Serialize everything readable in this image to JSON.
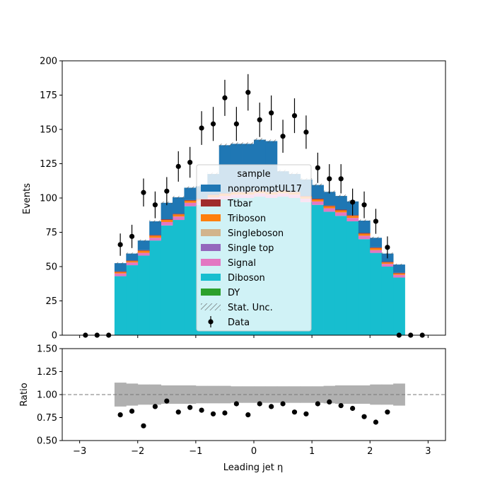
{
  "chart_data": [
    {
      "type": "bar",
      "subtype": "stacked-histogram-with-data-points",
      "xlabel": "Leading jet  η",
      "ylabel": "Events",
      "ylim": [
        0,
        200
      ],
      "yticks": [
        0,
        25,
        50,
        75,
        100,
        125,
        150,
        175,
        200
      ],
      "xlim": [
        -3.3,
        3.3
      ],
      "xticks": [
        -3,
        -2,
        -1,
        0,
        1,
        2,
        3
      ],
      "bin_edges": [
        -3.0,
        -2.8,
        -2.6,
        -2.4,
        -2.2,
        -2.0,
        -1.8,
        -1.6,
        -1.4,
        -1.2,
        -1.0,
        -0.8,
        -0.6,
        -0.4,
        -0.2,
        0.0,
        0.2,
        0.4,
        0.6,
        0.8,
        1.0,
        1.2,
        1.4,
        1.6,
        1.8,
        2.0,
        2.2,
        2.4,
        2.6,
        2.8,
        3.0
      ],
      "stack_order": [
        "DY",
        "Diboson",
        "Signal",
        "Single top",
        "Singleboson",
        "Triboson",
        "Ttbar",
        "nonpromptUL17"
      ],
      "series": [
        {
          "name": "nonpromptUL17",
          "color": "#1f77b4",
          "values": [
            0,
            0,
            0,
            6,
            5,
            7,
            10,
            12,
            12,
            9,
            9,
            15,
            35,
            35,
            35,
            37,
            37,
            14,
            13,
            12,
            10,
            10,
            10,
            10,
            9,
            7,
            6,
            6,
            0,
            0
          ]
        },
        {
          "name": "Ttbar",
          "color": "#a02c2c",
          "values": [
            0,
            0,
            0,
            0.5,
            0.5,
            0.5,
            0.5,
            0.5,
            0.5,
            0.5,
            0.5,
            0.5,
            0.5,
            0.5,
            0.5,
            0.5,
            0.5,
            0.5,
            0.5,
            0.5,
            0.5,
            0.5,
            0.5,
            0.5,
            0.5,
            0.5,
            0.5,
            0.5,
            0,
            0
          ]
        },
        {
          "name": "Triboson",
          "color": "#ff7f0e",
          "values": [
            0,
            0,
            0,
            1,
            1,
            1.5,
            1.5,
            1.5,
            1.5,
            1.5,
            1.5,
            1.5,
            1.5,
            1.5,
            1.5,
            1.5,
            1.5,
            1.5,
            1.5,
            1.5,
            1.5,
            1.5,
            1.5,
            1.5,
            1.5,
            1.5,
            1,
            1,
            0,
            0
          ]
        },
        {
          "name": "Singleboson",
          "color": "#d2b48c",
          "values": [
            0,
            0,
            0,
            0,
            0,
            0,
            0,
            0,
            0,
            0,
            0,
            0,
            0,
            0,
            0,
            0,
            0,
            0,
            0,
            0,
            0,
            0,
            0,
            0,
            0,
            0,
            0,
            0,
            0,
            0
          ]
        },
        {
          "name": "Single top",
          "color": "#9467bd",
          "values": [
            0,
            0,
            0,
            0,
            0,
            0,
            0,
            0,
            0,
            0,
            0,
            0,
            0,
            0,
            0,
            0,
            0,
            0,
            0,
            0,
            0,
            0,
            0,
            0,
            0,
            0,
            0,
            0,
            0,
            0
          ]
        },
        {
          "name": "Signal",
          "color": "#e377c2",
          "values": [
            0,
            0,
            0,
            2,
            2,
            2,
            2,
            2.5,
            2.5,
            2.5,
            2.5,
            2.5,
            2.5,
            2.5,
            2.5,
            2.5,
            2.5,
            2.5,
            2.5,
            2.5,
            2.5,
            2.5,
            2.5,
            2.5,
            2.5,
            2,
            2,
            2,
            0,
            0
          ]
        },
        {
          "name": "Diboson",
          "color": "#17becf",
          "values": [
            0,
            0,
            0,
            43,
            51,
            58,
            69,
            80,
            84,
            94,
            95,
            98,
            99,
            100,
            100,
            101,
            100,
            101,
            100,
            97,
            95,
            90,
            87,
            83,
            70,
            60,
            50,
            42,
            0,
            0
          ]
        },
        {
          "name": "DY",
          "color": "#2ca02c",
          "values": [
            0,
            0,
            0,
            0,
            0,
            0,
            0,
            0,
            0,
            0,
            0,
            0,
            0,
            0,
            0,
            0,
            0,
            0,
            0,
            0,
            0,
            0,
            0,
            0,
            0,
            0,
            0,
            0,
            0,
            0
          ]
        }
      ],
      "stat_unc_label": "Stat. Unc.",
      "data": {
        "name": "Data",
        "color": "#000000",
        "x": [
          -2.9,
          -2.7,
          -2.5,
          -2.3,
          -2.1,
          -1.9,
          -1.7,
          -1.5,
          -1.3,
          -1.1,
          -0.9,
          -0.7,
          -0.5,
          -0.3,
          -0.1,
          0.1,
          0.3,
          0.5,
          0.7,
          0.9,
          1.1,
          1.3,
          1.5,
          1.7,
          1.9,
          2.1,
          2.3,
          2.5,
          2.7,
          2.9
        ],
        "y": [
          0,
          0,
          0,
          66,
          72,
          104,
          95,
          105,
          123,
          126,
          151,
          154,
          173,
          154,
          177,
          157,
          162,
          145,
          160,
          148,
          122,
          114,
          114,
          97,
          95,
          83,
          64,
          0,
          0,
          0
        ]
      },
      "legend": {
        "title": "sample",
        "placement": "center"
      }
    },
    {
      "type": "scatter",
      "subtype": "ratio-panel",
      "xlabel": "Leading jet  η",
      "ylabel": "Ratio",
      "ylim": [
        0.5,
        1.5
      ],
      "yticks": [
        "0.50",
        "0.75",
        "1.00",
        "1.25",
        "1.50"
      ],
      "reference_line": 1.0,
      "unc_band": {
        "color": "#b0b0b0",
        "halfwidth": [
          0.13,
          0.12,
          0.11,
          0.11,
          0.1,
          0.1,
          0.1,
          0.095,
          0.095,
          0.095,
          0.09,
          0.09,
          0.09,
          0.09,
          0.09,
          0.09,
          0.09,
          0.09,
          0.095,
          0.1,
          0.1,
          0.1,
          0.11,
          0.11,
          0.12
        ]
      },
      "x": [
        -2.3,
        -2.1,
        -1.9,
        -1.7,
        -1.5,
        -1.3,
        -1.1,
        -0.9,
        -0.7,
        -0.5,
        -0.3,
        -0.1,
        0.1,
        0.3,
        0.5,
        0.7,
        0.9,
        1.1,
        1.3,
        1.5,
        1.7,
        1.9,
        2.1,
        2.3
      ],
      "y": [
        0.78,
        0.82,
        0.66,
        0.87,
        0.93,
        0.81,
        0.86,
        0.83,
        0.79,
        0.8,
        0.9,
        0.78,
        0.9,
        0.87,
        0.9,
        0.81,
        0.79,
        0.9,
        0.92,
        0.88,
        0.85,
        0.76,
        0.7,
        0.81
      ]
    }
  ]
}
